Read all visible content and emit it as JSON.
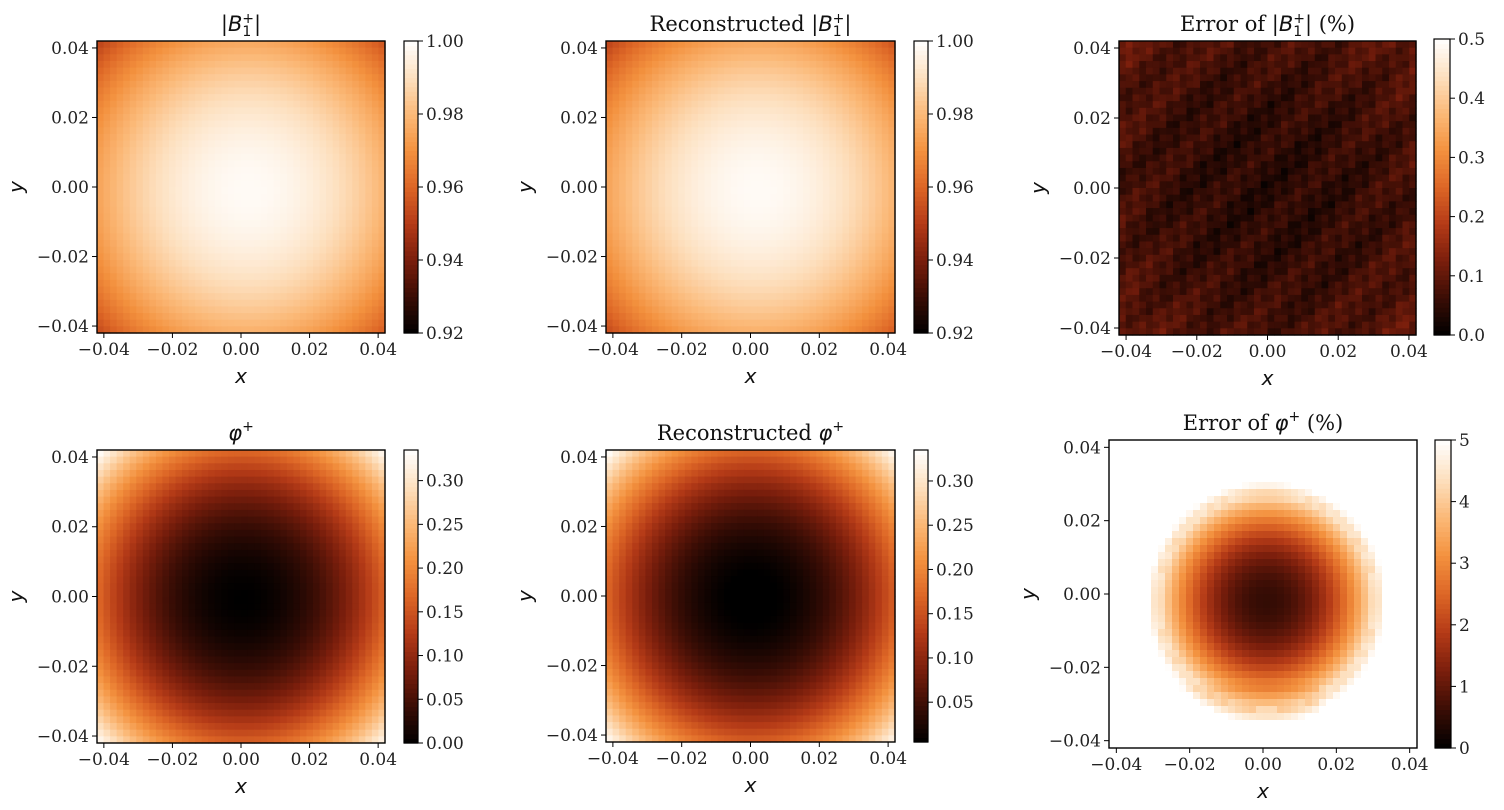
{
  "figure": {
    "colormap": [
      "#000000",
      "#3a0d05",
      "#7a1e0c",
      "#b43a17",
      "#dd6626",
      "#f3913e",
      "#fbb978",
      "#fde0bf",
      "#ffffff"
    ]
  },
  "chart_data": [
    {
      "id": "b1-mag",
      "type": "heatmap",
      "field": "b1_magnitude",
      "title": {
        "pre": "|",
        "main": "B",
        "sub": "1",
        "sup": "+",
        "post": "|"
      },
      "xlabel": "x",
      "ylabel": "y",
      "xlim": [
        -0.042,
        0.042
      ],
      "ylim": [
        -0.042,
        0.042
      ],
      "xticks": [
        -0.04,
        -0.02,
        0.0,
        0.02,
        0.04
      ],
      "xtick_labels": [
        "−0.04",
        "−0.02",
        "0.00",
        "0.02",
        "0.04"
      ],
      "yticks": [
        -0.04,
        -0.02,
        0.0,
        0.02,
        0.04
      ],
      "ytick_labels": [
        "−0.04",
        "−0.02",
        "0.00",
        "0.02",
        "0.04"
      ],
      "clim": [
        0.92,
        1.0
      ],
      "cbar_ticks": [
        0.92,
        0.94,
        0.96,
        0.98,
        1.0
      ],
      "cbar_tick_labels": [
        "0.92",
        "0.94",
        "0.96",
        "0.98",
        "1.00"
      ]
    },
    {
      "id": "b1-rec",
      "type": "heatmap",
      "field": "b1_magnitude",
      "title": {
        "pre": "Reconstructed |",
        "main": "B",
        "sub": "1",
        "sup": "+",
        "post": "|"
      },
      "xlabel": "x",
      "ylabel": "y",
      "xlim": [
        -0.042,
        0.042
      ],
      "ylim": [
        -0.042,
        0.042
      ],
      "xticks": [
        -0.04,
        -0.02,
        0.0,
        0.02,
        0.04
      ],
      "xtick_labels": [
        "−0.04",
        "−0.02",
        "0.00",
        "0.02",
        "0.04"
      ],
      "yticks": [
        -0.04,
        -0.02,
        0.0,
        0.02,
        0.04
      ],
      "ytick_labels": [
        "−0.04",
        "−0.02",
        "0.00",
        "0.02",
        "0.04"
      ],
      "clim": [
        0.92,
        1.0
      ],
      "cbar_ticks": [
        0.92,
        0.94,
        0.96,
        0.98,
        1.0
      ],
      "cbar_tick_labels": [
        "0.92",
        "0.94",
        "0.96",
        "0.98",
        "1.00"
      ]
    },
    {
      "id": "b1-err",
      "type": "heatmap",
      "field": "b1_error",
      "title": {
        "pre": "Error of |",
        "main": "B",
        "sub": "1",
        "sup": "+",
        "post": "| (%)"
      },
      "xlabel": "x",
      "ylabel": "y",
      "xlim": [
        -0.042,
        0.042
      ],
      "ylim": [
        -0.042,
        0.042
      ],
      "xticks": [
        -0.04,
        -0.02,
        0.0,
        0.02,
        0.04
      ],
      "xtick_labels": [
        "−0.04",
        "−0.02",
        "0.00",
        "0.02",
        "0.04"
      ],
      "yticks": [
        -0.04,
        -0.02,
        0.0,
        0.02,
        0.04
      ],
      "ytick_labels": [
        "−0.04",
        "−0.02",
        "0.00",
        "0.02",
        "0.04"
      ],
      "clim": [
        0.0,
        0.5
      ],
      "cbar_ticks": [
        0.0,
        0.1,
        0.2,
        0.3,
        0.4,
        0.5
      ],
      "cbar_tick_labels": [
        "0.0",
        "0.1",
        "0.2",
        "0.3",
        "0.4",
        "0.5"
      ]
    },
    {
      "id": "phi",
      "type": "heatmap",
      "field": "phase",
      "title": {
        "pre": "",
        "main": "φ",
        "sub": "",
        "sup": "+",
        "post": ""
      },
      "xlabel": "x",
      "ylabel": "y",
      "xlim": [
        -0.042,
        0.042
      ],
      "ylim": [
        -0.042,
        0.042
      ],
      "xticks": [
        -0.04,
        -0.02,
        0.0,
        0.02,
        0.04
      ],
      "xtick_labels": [
        "−0.04",
        "−0.02",
        "0.00",
        "0.02",
        "0.04"
      ],
      "yticks": [
        -0.04,
        -0.02,
        0.0,
        0.02,
        0.04
      ],
      "ytick_labels": [
        "−0.04",
        "−0.02",
        "0.00",
        "0.02",
        "0.04"
      ],
      "clim": [
        0.0,
        0.335
      ],
      "cbar_ticks": [
        0.0,
        0.05,
        0.1,
        0.15,
        0.2,
        0.25,
        0.3
      ],
      "cbar_tick_labels": [
        "0.00",
        "0.05",
        "0.10",
        "0.15",
        "0.20",
        "0.25",
        "0.30"
      ]
    },
    {
      "id": "phi-rec",
      "type": "heatmap",
      "field": "phase",
      "title": {
        "pre": "Reconstructed ",
        "main": "φ",
        "sub": "",
        "sup": "+",
        "post": ""
      },
      "xlabel": "x",
      "ylabel": "y",
      "xlim": [
        -0.042,
        0.042
      ],
      "ylim": [
        -0.042,
        0.042
      ],
      "xticks": [
        -0.04,
        -0.02,
        0.0,
        0.02,
        0.04
      ],
      "xtick_labels": [
        "−0.04",
        "−0.02",
        "0.00",
        "0.02",
        "0.04"
      ],
      "yticks": [
        -0.04,
        -0.02,
        0.0,
        0.02,
        0.04
      ],
      "ytick_labels": [
        "−0.04",
        "−0.02",
        "0.00",
        "0.02",
        "0.04"
      ],
      "clim": [
        0.005,
        0.335
      ],
      "cbar_ticks": [
        0.05,
        0.1,
        0.15,
        0.2,
        0.25,
        0.3
      ],
      "cbar_tick_labels": [
        "0.05",
        "0.10",
        "0.15",
        "0.20",
        "0.25",
        "0.30"
      ]
    },
    {
      "id": "phi-err",
      "type": "heatmap",
      "field": "phase_error",
      "title": {
        "pre": "Error of ",
        "main": "φ",
        "sub": "",
        "sup": "+",
        "post": " (%)"
      },
      "xlabel": "x",
      "ylabel": "y",
      "xlim": [
        -0.042,
        0.042
      ],
      "ylim": [
        -0.042,
        0.042
      ],
      "xticks": [
        -0.04,
        -0.02,
        0.0,
        0.02,
        0.04
      ],
      "xtick_labels": [
        "−0.04",
        "−0.02",
        "0.00",
        "0.02",
        "0.04"
      ],
      "yticks": [
        -0.04,
        -0.02,
        0.0,
        0.02,
        0.04
      ],
      "ytick_labels": [
        "−0.04",
        "−0.02",
        "0.00",
        "0.02",
        "0.04"
      ],
      "clim": [
        0,
        5
      ],
      "cbar_ticks": [
        0,
        1,
        2,
        3,
        4,
        5
      ],
      "cbar_tick_labels": [
        "0",
        "1",
        "2",
        "3",
        "4",
        "5"
      ]
    }
  ]
}
